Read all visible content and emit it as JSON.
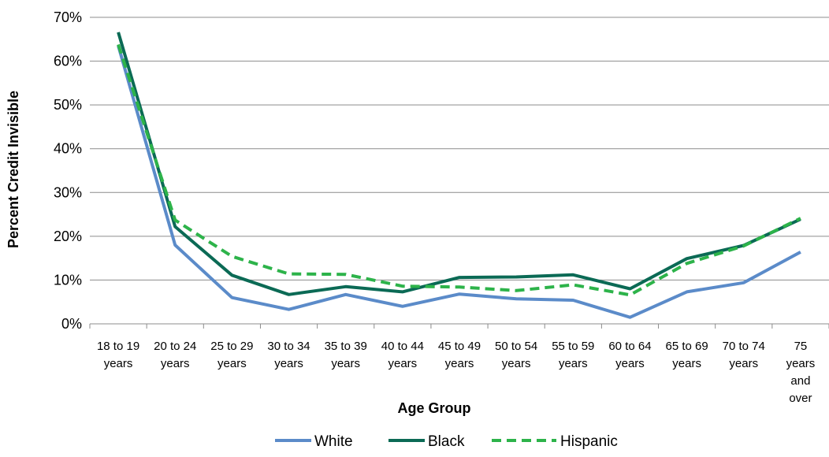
{
  "chart_data": {
    "type": "line",
    "title": "",
    "xlabel": "Age Group",
    "ylabel": "Percent Credit Invisible",
    "ylim": [
      0,
      70
    ],
    "yticks": [
      0,
      10,
      20,
      30,
      40,
      50,
      60,
      70
    ],
    "ytick_suffix": "%",
    "grid": "horizontal",
    "legend_position": "bottom",
    "categories": [
      "18 to 19 years",
      "20 to 24 years",
      "25 to 29 years",
      "30 to 34 years",
      "35 to 39 years",
      "40 to 44 years",
      "45 to 49 years",
      "50 to 54 years",
      "55 to 59 years",
      "60 to 64 years",
      "65 to 69 years",
      "70 to 74 years",
      "75 years and over"
    ],
    "category_label_lines": [
      [
        "18 to 19",
        "years"
      ],
      [
        "20 to 24",
        "years"
      ],
      [
        "25 to 29",
        "years"
      ],
      [
        "30 to 34",
        "years"
      ],
      [
        "35 to 39",
        "years"
      ],
      [
        "40 to 44",
        "years"
      ],
      [
        "45 to 49",
        "years"
      ],
      [
        "50 to 54",
        "years"
      ],
      [
        "55 to 59",
        "years"
      ],
      [
        "60 to 64",
        "years"
      ],
      [
        "65 to 69",
        "years"
      ],
      [
        "70 to 74",
        "years"
      ],
      [
        "75",
        "years",
        "and",
        "over"
      ]
    ],
    "series": [
      {
        "name": "White",
        "color": "#5b8bc9",
        "dash": "solid",
        "values": [
          63.5,
          18.0,
          6.0,
          3.3,
          6.7,
          4.0,
          6.8,
          5.7,
          5.4,
          1.5,
          7.3,
          9.4,
          16.4
        ]
      },
      {
        "name": "Black",
        "color": "#0b6a55",
        "dash": "solid",
        "values": [
          66.6,
          22.2,
          11.1,
          6.7,
          8.5,
          7.3,
          10.6,
          10.7,
          11.2,
          8.0,
          14.9,
          17.9,
          23.9
        ]
      },
      {
        "name": "Hispanic",
        "color": "#2db34a",
        "dash": "dashed",
        "values": [
          63.8,
          23.7,
          15.4,
          11.4,
          11.3,
          8.6,
          8.4,
          7.6,
          8.9,
          6.6,
          13.8,
          17.8,
          24.1
        ]
      }
    ]
  }
}
